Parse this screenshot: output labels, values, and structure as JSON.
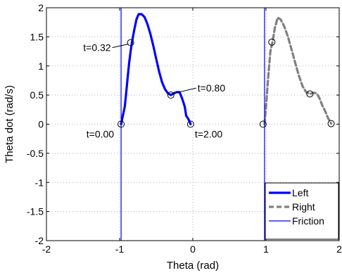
{
  "chart_data": {
    "type": "line",
    "title": "",
    "xlabel": "Theta (rad)",
    "ylabel": "Theta dot (rad/s)",
    "xlim": [
      -2,
      2
    ],
    "ylim": [
      -2,
      2
    ],
    "xticks": [
      -2,
      -1,
      0,
      1,
      2
    ],
    "xtick_labels": [
      "-2",
      "-1",
      "0",
      "1",
      "2"
    ],
    "yticks": [
      -2,
      -1.5,
      -1,
      -0.5,
      0,
      0.5,
      1,
      1.5,
      2
    ],
    "ytick_labels": [
      "-2",
      "-1.5",
      "-1",
      "-0.5",
      "0",
      "0.5",
      "1",
      "1.5",
      "2"
    ],
    "grid": true,
    "legend_position": "bottom-right",
    "series": [
      {
        "name": "Left",
        "color": "#0000ff",
        "style": "solid-thick",
        "points": [
          [
            -0.98,
            0.0
          ],
          [
            -0.97,
            0.06
          ],
          [
            -0.95,
            0.18
          ],
          [
            -0.93,
            0.3
          ],
          [
            -0.91,
            0.55
          ],
          [
            -0.89,
            0.8
          ],
          [
            -0.87,
            1.05
          ],
          [
            -0.85,
            1.25
          ],
          [
            -0.83,
            1.42
          ],
          [
            -0.8,
            1.62
          ],
          [
            -0.77,
            1.8
          ],
          [
            -0.74,
            1.89
          ],
          [
            -0.7,
            1.89
          ],
          [
            -0.66,
            1.84
          ],
          [
            -0.62,
            1.72
          ],
          [
            -0.58,
            1.55
          ],
          [
            -0.54,
            1.35
          ],
          [
            -0.5,
            1.12
          ],
          [
            -0.46,
            0.9
          ],
          [
            -0.42,
            0.72
          ],
          [
            -0.38,
            0.6
          ],
          [
            -0.34,
            0.53
          ],
          [
            -0.3,
            0.5
          ],
          [
            -0.26,
            0.53
          ],
          [
            -0.22,
            0.55
          ],
          [
            -0.18,
            0.55
          ],
          [
            -0.14,
            0.42
          ],
          [
            -0.11,
            0.3
          ],
          [
            -0.09,
            0.14
          ],
          [
            -0.07,
            0.11
          ],
          [
            -0.05,
            0.06
          ],
          [
            -0.03,
            0.0
          ]
        ]
      },
      {
        "name": "Right",
        "color": "#808080",
        "style": "dashed-thick",
        "points": [
          [
            0.98,
            0.0
          ],
          [
            1.0,
            0.3
          ],
          [
            1.03,
            0.8
          ],
          [
            1.06,
            1.25
          ],
          [
            1.09,
            1.42
          ],
          [
            1.12,
            1.65
          ],
          [
            1.16,
            1.83
          ],
          [
            1.2,
            1.8
          ],
          [
            1.25,
            1.68
          ],
          [
            1.3,
            1.5
          ],
          [
            1.35,
            1.28
          ],
          [
            1.4,
            1.05
          ],
          [
            1.45,
            0.83
          ],
          [
            1.5,
            0.65
          ],
          [
            1.55,
            0.55
          ],
          [
            1.6,
            0.52
          ],
          [
            1.65,
            0.54
          ],
          [
            1.69,
            0.53
          ],
          [
            1.73,
            0.45
          ],
          [
            1.77,
            0.32
          ],
          [
            1.81,
            0.22
          ],
          [
            1.85,
            0.1
          ],
          [
            1.89,
            0.01
          ]
        ]
      },
      {
        "name": "Friction",
        "color": "#0000ff",
        "style": "solid-thin",
        "vlines": [
          -0.98,
          0.98
        ]
      }
    ],
    "markers": [
      [
        -0.98,
        0.0
      ],
      [
        -0.85,
        1.4
      ],
      [
        -0.3,
        0.5
      ],
      [
        -0.03,
        0.0
      ],
      [
        0.96,
        0.0
      ],
      [
        1.08,
        1.41
      ],
      [
        1.6,
        0.52
      ],
      [
        1.89,
        0.01
      ]
    ],
    "annotations": [
      {
        "text": "t=0.32",
        "x": -0.85,
        "y": 1.4,
        "label_position": "left"
      },
      {
        "text": "t=0.80",
        "x": -0.3,
        "y": 0.5,
        "label_position": "right"
      },
      {
        "text": "t=0.00",
        "x": -0.98,
        "y": 0.0,
        "label_position": "below-left"
      },
      {
        "text": "t=2.00",
        "x": -0.03,
        "y": 0.0,
        "label_position": "below-right"
      }
    ]
  }
}
